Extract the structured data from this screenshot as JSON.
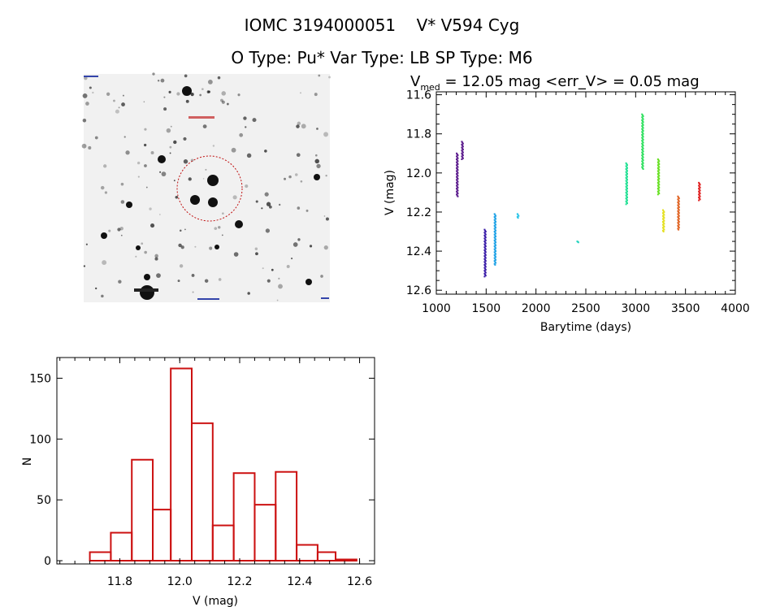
{
  "header": {
    "title": "IOMC 3194000051    V* V594 Cyg",
    "subtitle": "O Type: Pu*  Var Type: LB  SP Type: M6"
  },
  "image_panel": {
    "content": "sky cutout (inverted grayscale) with red dashed circle around target"
  },
  "chart_data": [
    {
      "type": "scatter",
      "title_prefix": "V",
      "title_sub": "med",
      "title_rest": " = 12.05 mag <err_V> = 0.05 mag",
      "xlabel": "Barytime (days)",
      "ylabel": "V (mag)",
      "xlim": [
        1000,
        4000
      ],
      "ylim": [
        12.62,
        11.585
      ],
      "y_inverted": true,
      "xticks": [
        "1000",
        "1500",
        "2000",
        "2500",
        "3000",
        "3500",
        "4000"
      ],
      "yticks": [
        "11.6",
        "11.8",
        "12.0",
        "12.2",
        "12.4",
        "12.6"
      ],
      "grid": false,
      "clusters": [
        {
          "x": 1210,
          "v_min": 11.9,
          "v_max": 12.12,
          "color": "#5a1a8c"
        },
        {
          "x": 1262,
          "v_min": 11.84,
          "v_max": 11.93,
          "color": "#5a1a8c"
        },
        {
          "x": 1490,
          "v_min": 12.29,
          "v_max": 12.53,
          "color": "#3a1ca8"
        },
        {
          "x": 1590,
          "v_min": 12.21,
          "v_max": 12.47,
          "color": "#1ea2e6"
        },
        {
          "x": 1820,
          "v_min": 12.21,
          "v_max": 12.23,
          "color": "#28c4e8"
        },
        {
          "x": 2420,
          "v_min": 12.35,
          "v_max": 12.355,
          "color": "#28d4c0"
        },
        {
          "x": 2910,
          "v_min": 11.95,
          "v_max": 12.16,
          "color": "#22e094"
        },
        {
          "x": 3070,
          "v_min": 11.7,
          "v_max": 11.98,
          "color": "#30e060"
        },
        {
          "x": 3230,
          "v_min": 11.93,
          "v_max": 12.11,
          "color": "#66e020"
        },
        {
          "x": 3280,
          "v_min": 12.19,
          "v_max": 12.3,
          "color": "#e4e020"
        },
        {
          "x": 3430,
          "v_min": 12.12,
          "v_max": 12.29,
          "color": "#e06424"
        },
        {
          "x": 3640,
          "v_min": 12.05,
          "v_max": 12.14,
          "color": "#e02020"
        }
      ]
    },
    {
      "type": "bar",
      "subtype": "histogram",
      "xlabel": "V (mag)",
      "ylabel": "N",
      "xlim": [
        11.59,
        12.65
      ],
      "ylim": [
        0,
        167
      ],
      "xticks": [
        "11.8",
        "12.0",
        "12.2",
        "12.4",
        "12.6"
      ],
      "yticks": [
        "0",
        "50",
        "100",
        "150"
      ],
      "bin_edges": [
        11.7,
        11.77,
        11.84,
        11.91,
        11.97,
        12.04,
        12.11,
        12.18,
        12.25,
        12.32,
        12.39,
        12.46,
        12.52,
        12.59
      ],
      "values": [
        7,
        23,
        83,
        42,
        158,
        113,
        29,
        72,
        46,
        73,
        13,
        7,
        1
      ],
      "color": "#cc1111",
      "grid": false
    }
  ]
}
